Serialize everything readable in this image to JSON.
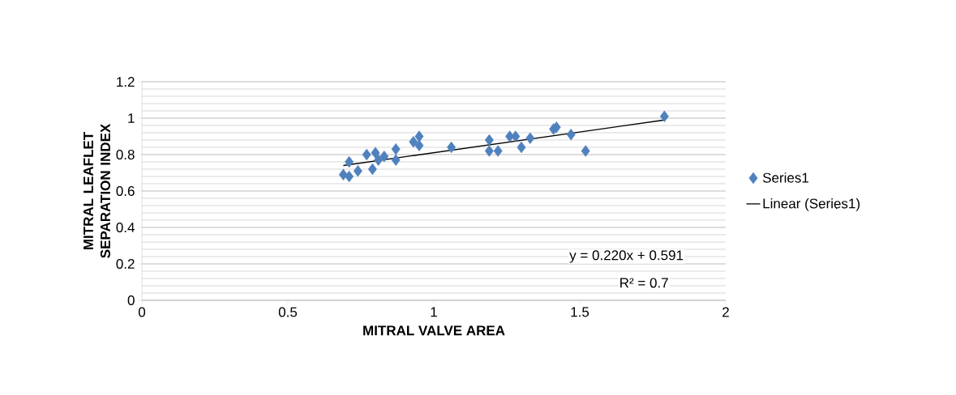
{
  "chart_data": {
    "type": "scatter",
    "xlabel": "MITRAL VALVE AREA",
    "ylabel": "MITRAL LEAFLET SEPARATION INDEX",
    "xlim": [
      0,
      2
    ],
    "xticks": [
      0,
      0.5,
      1,
      1.5,
      2
    ],
    "ylim": [
      0,
      1.2
    ],
    "yticks": [
      0,
      0.2,
      0.4,
      0.6,
      0.8,
      1,
      1.2
    ],
    "grid": "y",
    "legend": "right",
    "annotations": [
      "y = 0.220x + 0.591",
      "R² = 0.7"
    ],
    "series": [
      {
        "name": "Series1",
        "marker": "diamond",
        "color": "#4f81bd",
        "x": [
          0.69,
          0.71,
          0.71,
          0.74,
          0.77,
          0.79,
          0.8,
          0.81,
          0.83,
          0.87,
          0.87,
          0.93,
          0.95,
          0.95,
          1.06,
          1.19,
          1.19,
          1.22,
          1.26,
          1.28,
          1.3,
          1.33,
          1.41,
          1.42,
          1.47,
          1.52,
          1.79
        ],
        "values": [
          0.69,
          0.76,
          0.68,
          0.71,
          0.8,
          0.72,
          0.81,
          0.77,
          0.79,
          0.83,
          0.77,
          0.87,
          0.9,
          0.85,
          0.84,
          0.88,
          0.82,
          0.82,
          0.9,
          0.9,
          0.84,
          0.89,
          0.94,
          0.95,
          0.91,
          0.82,
          1.01
        ]
      },
      {
        "name": "Linear (Series1)",
        "type": "line",
        "color": "#000000",
        "x": [
          0.69,
          1.79
        ],
        "values": [
          0.74,
          0.99
        ]
      }
    ]
  }
}
